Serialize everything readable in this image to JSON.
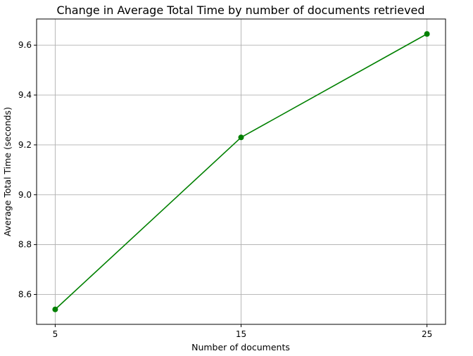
{
  "chart_data": {
    "type": "line",
    "title": "Change in Average Total Time by number of documents retrieved",
    "xlabel": "Number of documents",
    "ylabel": "Average Total Time (seconds)",
    "x": [
      5,
      15,
      25
    ],
    "series": [
      {
        "values": [
          8.54,
          9.23,
          9.645
        ],
        "color": "#008000",
        "marker": "circle"
      }
    ],
    "xlim": [
      4.0,
      26.0
    ],
    "ylim": [
      8.48,
      9.705
    ],
    "xticks": [
      5,
      15,
      25
    ],
    "xtick_labels": [
      "5",
      "15",
      "25"
    ],
    "yticks": [
      8.6,
      8.8,
      9.0,
      9.2,
      9.4,
      9.6
    ],
    "ytick_labels": [
      "8.6",
      "8.8",
      "9.0",
      "9.2",
      "9.4",
      "9.6"
    ],
    "grid": true,
    "legend": false
  }
}
